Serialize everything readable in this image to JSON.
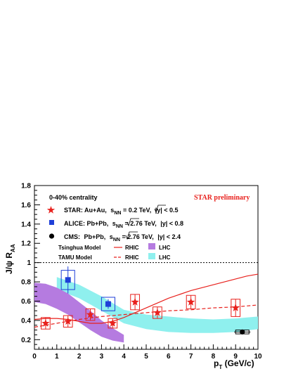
{
  "chart_data": {
    "type": "scatter",
    "xlabel_main": "p",
    "xlabel_sub": "T",
    "xlabel_unit": " (GeV/c)",
    "ylabel_main": "J/ψ R",
    "ylabel_sub": "AA",
    "xlim": [
      0,
      10
    ],
    "ylim": [
      0.1,
      1.8
    ],
    "x_ticks": [
      "0",
      "1",
      "2",
      "3",
      "4",
      "5",
      "6",
      "7",
      "8",
      "9",
      "10"
    ],
    "y_ticks": [
      "0.2",
      "0.4",
      "0.6",
      "0.8",
      "1",
      "1.2",
      "1.4",
      "1.6",
      "1.8"
    ],
    "x_tick_values": [
      0,
      1,
      2,
      3,
      4,
      5,
      6,
      7,
      8,
      9,
      10
    ],
    "y_tick_values": [
      0.2,
      0.4,
      0.6,
      0.8,
      1.0,
      1.2,
      1.4,
      1.6,
      1.8
    ],
    "reference_line_y": 1.0,
    "centrality_label": "0-40% centrality",
    "preliminary_label": "STAR preliminary",
    "legend": {
      "star": {
        "name": "STAR:",
        "system": "Au+Au,",
        "energy_pre": "s",
        "energy_sub": "NN",
        "energy_val": " = 0.2 TeV,",
        "cut": "|y| < 0.5"
      },
      "alice": {
        "name": "ALICE:",
        "system": "Pb+Pb,",
        "energy_pre": "s",
        "energy_sub": "NN",
        "energy_val": " = 2.76 TeV,",
        "cut": "|y| < 0.8"
      },
      "cms": {
        "name": "CMS:",
        "system": "Pb+Pb,",
        "energy_pre": "s",
        "energy_sub": "NN",
        "energy_val": " = 2.76 TeV,",
        "cut": "|y| < 2.4"
      },
      "tsinghua": "Tsinghua Model",
      "tamu": "TAMU Model",
      "rhic": "RHIC",
      "lhc": "LHC"
    },
    "colors": {
      "star": "#e8211d",
      "alice": "#1f3fd8",
      "cms": "#000000",
      "tsinghua_lhc": "#b57be0",
      "tamu_lhc": "#8ff0ee"
    },
    "series": [
      {
        "name": "STAR",
        "x": [
          0.5,
          1.5,
          2.5,
          3.5,
          4.5,
          5.5,
          7.0,
          9.0
        ],
        "y": [
          0.37,
          0.39,
          0.46,
          0.37,
          0.59,
          0.48,
          0.59,
          0.53
        ],
        "sys_x": [
          0.2,
          0.2,
          0.2,
          0.2,
          0.2,
          0.2,
          0.2,
          0.2
        ],
        "sys_y": [
          0.06,
          0.06,
          0.06,
          0.05,
          0.08,
          0.06,
          0.07,
          0.09
        ]
      },
      {
        "name": "ALICE",
        "x": [
          1.5,
          3.3
        ],
        "y": [
          0.82,
          0.57
        ],
        "stat": [
          0.14,
          0.05
        ],
        "sys_x": [
          0.3,
          0.3
        ],
        "sys_y": [
          0.1,
          0.07
        ]
      },
      {
        "name": "CMS",
        "x": [
          9.3
        ],
        "y": [
          0.28
        ],
        "sys_x": [
          0.3
        ],
        "sys_y": [
          0.02
        ]
      }
    ],
    "models": {
      "tsinghua_rhic": {
        "x": [
          0,
          0.5,
          1,
          1.5,
          2,
          2.5,
          3,
          3.5,
          4,
          4.5,
          5,
          5.5,
          6,
          6.5,
          7,
          7.5,
          8,
          8.5,
          9,
          9.5,
          10
        ],
        "y": [
          0.41,
          0.42,
          0.42,
          0.41,
          0.39,
          0.37,
          0.37,
          0.39,
          0.43,
          0.48,
          0.53,
          0.58,
          0.63,
          0.67,
          0.71,
          0.74,
          0.77,
          0.8,
          0.83,
          0.86,
          0.88
        ]
      },
      "tamu_rhic": {
        "x": [
          0,
          1,
          2,
          3,
          4,
          5,
          6,
          7,
          8,
          9,
          10
        ],
        "y": [
          0.33,
          0.37,
          0.41,
          0.44,
          0.46,
          0.48,
          0.5,
          0.51,
          0.53,
          0.54,
          0.56
        ]
      },
      "tsinghua_lhc": {
        "x": [
          0,
          0.5,
          1,
          1.5,
          2,
          2.5,
          3,
          3.5,
          4
        ],
        "upper": [
          0.79,
          0.78,
          0.74,
          0.68,
          0.59,
          0.5,
          0.4,
          0.32,
          0.25
        ],
        "lower": [
          0.59,
          0.57,
          0.52,
          0.46,
          0.38,
          0.3,
          0.23,
          0.19,
          0.17
        ]
      },
      "tamu_lhc": {
        "x": [
          1,
          2,
          3,
          4,
          5,
          6,
          7,
          8,
          9,
          10
        ],
        "upper": [
          0.85,
          0.77,
          0.65,
          0.51,
          0.46,
          0.44,
          0.42,
          0.41,
          0.42,
          0.44
        ],
        "lower": [
          0.72,
          0.63,
          0.5,
          0.37,
          0.31,
          0.28,
          0.27,
          0.27,
          0.28,
          0.31
        ]
      }
    },
    "norm_uncertainties": [
      {
        "color": "#000000"
      },
      {
        "color": "#1f3fd8"
      },
      {
        "color": "#e8211d"
      },
      {
        "color": "#ff9ab0"
      }
    ]
  }
}
